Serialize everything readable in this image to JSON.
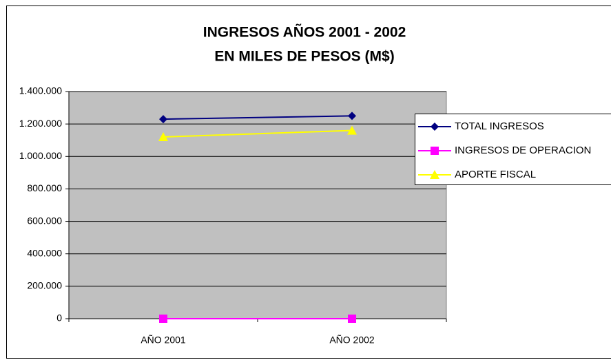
{
  "chart_data": {
    "type": "line",
    "title": [
      "INGRESOS AÑOS 2001 - 2002",
      "EN MILES DE PESOS (M$)"
    ],
    "categories": [
      "AÑO 2001",
      "AÑO 2002"
    ],
    "series": [
      {
        "name": "TOTAL INGRESOS",
        "color": "#000080",
        "marker": "diamond",
        "values": [
          1230000,
          1250000
        ]
      },
      {
        "name": "INGRESOS DE OPERACION",
        "color": "#ff00ff",
        "marker": "square",
        "values": [
          0,
          0
        ]
      },
      {
        "name": "APORTE FISCAL",
        "color": "#ffff00",
        "marker": "triangle",
        "values": [
          1120000,
          1160000
        ]
      }
    ],
    "ylim": [
      0,
      1400000
    ],
    "yticks": [
      0,
      {
        "value": 200000,
        "label": "200.000"
      },
      {
        "value": 400000,
        "label": "400.000"
      },
      {
        "value": 600000,
        "label": "600.000"
      },
      {
        "value": 800000,
        "label": "800.000"
      },
      {
        "value": 1000000,
        "label": "1.000.000"
      },
      {
        "value": 1200000,
        "label": "1.200.000"
      },
      {
        "value": 1400000,
        "label": "1.400.000"
      }
    ],
    "grid": true,
    "plot_background": "#c0c0c0",
    "legend": "right"
  }
}
